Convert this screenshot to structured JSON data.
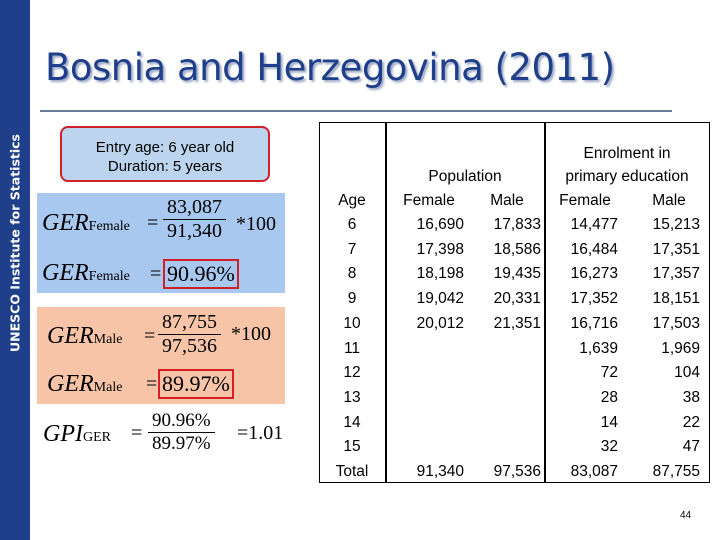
{
  "sidebar": {
    "label": "UNESCO Institute for Statistics"
  },
  "title": "Bosnia and Herzegovina (2011)",
  "entry_info": {
    "line1": "Entry age: 6 year old",
    "line2": "Duration: 5 years"
  },
  "formulas": {
    "ger_female": {
      "label": "GER",
      "sub": "Female",
      "numerator": "83,087",
      "denominator": "91,340",
      "times": "*100",
      "result_label": "GER",
      "result_sub": "Female",
      "result": "90.96%"
    },
    "ger_male": {
      "label": "GER",
      "sub": "Male",
      "numerator": "87,755",
      "denominator": "97,536",
      "times": "*100",
      "result_label": "GER",
      "result_sub": "Male",
      "result": "89.97%"
    },
    "gpi": {
      "label": "GPI",
      "sub": "GER",
      "numerator": "90.96%",
      "denominator": "89.97%",
      "result": "=1.01"
    }
  },
  "table": {
    "headers": {
      "age": "Age",
      "population": "Population",
      "enrolment_line1": "Enrolment in",
      "enrolment_line2": "primary education",
      "pop_female": "Female",
      "pop_male": "Male",
      "enr_female": "Female",
      "enr_male": "Male"
    },
    "rows": [
      {
        "age": "6",
        "pop_f": "16,690",
        "pop_m": "17,833",
        "enr_f": "14,477",
        "enr_m": "15,213"
      },
      {
        "age": "7",
        "pop_f": "17,398",
        "pop_m": "18,586",
        "enr_f": "16,484",
        "enr_m": "17,351"
      },
      {
        "age": "8",
        "pop_f": "18,198",
        "pop_m": "19,435",
        "enr_f": "16,273",
        "enr_m": "17,357"
      },
      {
        "age": "9",
        "pop_f": "19,042",
        "pop_m": "20,331",
        "enr_f": "17,352",
        "enr_m": "18,151"
      },
      {
        "age": "10",
        "pop_f": "20,012",
        "pop_m": "21,351",
        "enr_f": "16,716",
        "enr_m": "17,503"
      },
      {
        "age": "11",
        "pop_f": "",
        "pop_m": "",
        "enr_f": "1,639",
        "enr_m": "1,969"
      },
      {
        "age": "12",
        "pop_f": "",
        "pop_m": "",
        "enr_f": "72",
        "enr_m": "104"
      },
      {
        "age": "13",
        "pop_f": "",
        "pop_m": "",
        "enr_f": "28",
        "enr_m": "38"
      },
      {
        "age": "14",
        "pop_f": "",
        "pop_m": "",
        "enr_f": "14",
        "enr_m": "22"
      },
      {
        "age": "15",
        "pop_f": "",
        "pop_m": "",
        "enr_f": "32",
        "enr_m": "47"
      },
      {
        "age": "Total",
        "pop_f": "91,340",
        "pop_m": "97,536",
        "enr_f": "83,087",
        "enr_m": "87,755"
      }
    ]
  },
  "page_number": "44"
}
